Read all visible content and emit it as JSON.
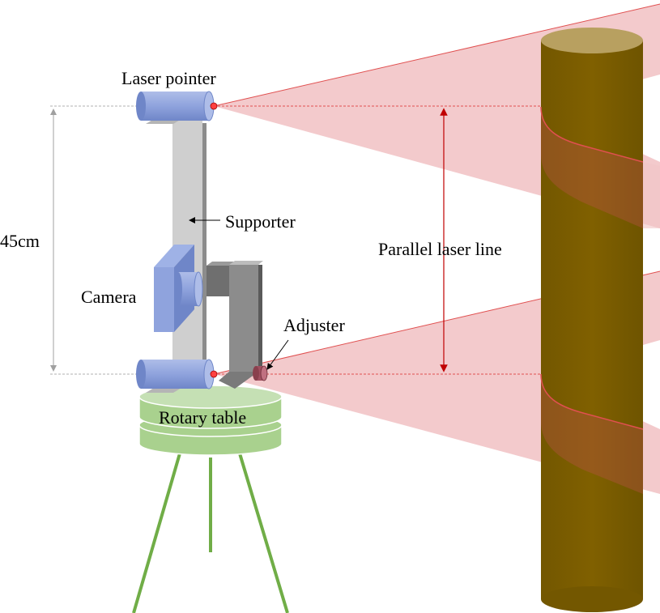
{
  "labels": {
    "laser_pointer": "Laser pointer",
    "distance": "45cm",
    "supporter": "Supporter",
    "camera": "Camera",
    "adjuster": "Adjuster",
    "parallel_laser_line": "Parallel laser line",
    "rotary_table": "Rotary table"
  },
  "colors": {
    "laser_beam_fill": "#f2c4c6",
    "laser_line": "#e04040",
    "laser_body": "#8fa3dd",
    "camera_body": "#8fa3dd",
    "supporter": "#cfcfcf",
    "adjuster_arm": "#8c8c8c",
    "adjuster_knob": "#a05060",
    "rotary_table": "#a9d18e",
    "tripod": "#70ad47",
    "tree_trunk": "#7f6000",
    "tree_top": "#b8a060",
    "dimension_line": "#b0b0b0"
  },
  "icons": [
    "laser-pointer-icon",
    "camera-icon",
    "tripod-icon",
    "tree-trunk-icon"
  ]
}
